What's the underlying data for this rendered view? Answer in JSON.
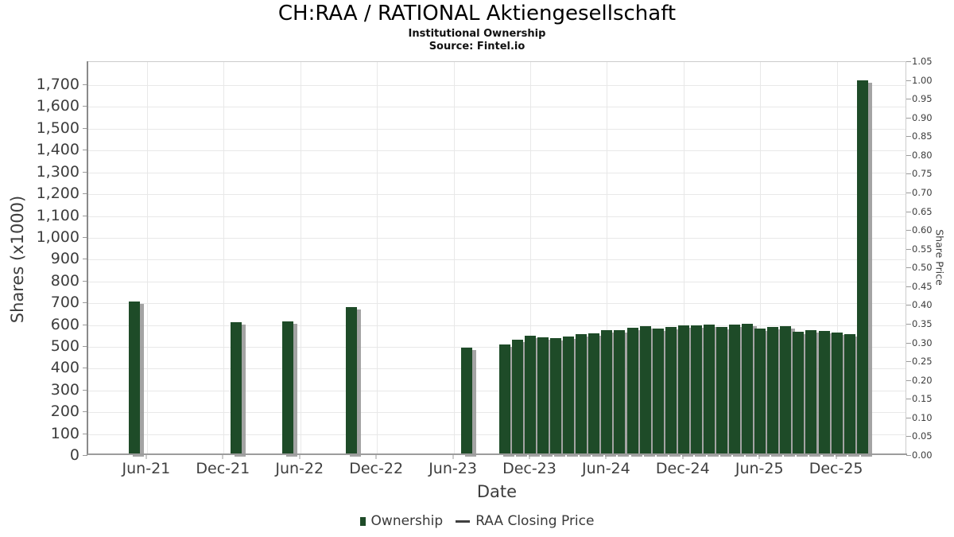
{
  "title": "CH:RAA / RATIONAL Aktiengesellschaft",
  "subtitle": "Institutional Ownership",
  "source": "Source: Fintel.io",
  "legend": {
    "items": [
      {
        "label": "Ownership",
        "symbol": "bar-swatch",
        "color": "#1e4b28"
      },
      {
        "label": "RAA Closing Price",
        "symbol": "line-swatch",
        "color": "#3f3f3f"
      }
    ]
  },
  "colors": {
    "bar": "#1e4b28",
    "bar_shadow": "#949494",
    "gridline": "#e8e8e8",
    "plot_border": "#cccccc",
    "axis_line": "#9c9c9c",
    "tick_label": "#3d3d3d",
    "title_text": "#000000"
  },
  "chart_data": {
    "type": "bar",
    "title": "CH:RAA / RATIONAL Aktiengesellschaft",
    "subtitle": "Institutional Ownership",
    "source": "Source: Fintel.io",
    "xlabel": "Date",
    "ylabel_left": "Shares (x1000)",
    "ylabel_right": "Share Price",
    "grid": "on",
    "legend_position": "bottom-center",
    "x_tick_labels": [
      "Jun-21",
      "Dec-21",
      "Jun-22",
      "Dec-22",
      "Jun-23",
      "Dec-23",
      "Jun-24",
      "Dec-24",
      "Jun-25",
      "Dec-25"
    ],
    "y_left_axis": {
      "min": 0,
      "max_visible_tick": 1700,
      "top_of_plot_value": 1806,
      "tick_step": 100,
      "ticks": [
        0,
        100,
        200,
        300,
        400,
        500,
        600,
        700,
        800,
        900,
        1000,
        1100,
        1200,
        1300,
        1400,
        1500,
        1600,
        1700
      ]
    },
    "y_right_axis": {
      "min": 0.0,
      "max": 1.05,
      "tick_step": 0.05,
      "ticks": [
        0.0,
        0.05,
        0.1,
        0.15,
        0.2,
        0.25,
        0.3,
        0.35,
        0.4,
        0.45,
        0.5,
        0.55,
        0.6,
        0.65,
        0.7,
        0.75,
        0.8,
        0.85,
        0.9,
        0.95,
        1.0,
        1.05
      ]
    },
    "series": [
      {
        "name": "Ownership",
        "type": "bar",
        "units": "shares x1000",
        "points": [
          {
            "date": "May-21",
            "value": 700
          },
          {
            "date": "Jan-22",
            "value": 605
          },
          {
            "date": "May-22",
            "value": 610
          },
          {
            "date": "Oct-22",
            "value": 675
          },
          {
            "date": "Jul-23",
            "value": 490
          },
          {
            "date": "Oct-23",
            "value": 505
          },
          {
            "date": "Nov-23",
            "value": 525
          },
          {
            "date": "Dec-23",
            "value": 543
          },
          {
            "date": "Jan-24",
            "value": 535
          },
          {
            "date": "Feb-24",
            "value": 533
          },
          {
            "date": "Mar-24",
            "value": 540
          },
          {
            "date": "Apr-24",
            "value": 550
          },
          {
            "date": "May-24",
            "value": 556
          },
          {
            "date": "Jun-24",
            "value": 569
          },
          {
            "date": "Jul-24",
            "value": 569
          },
          {
            "date": "Aug-24",
            "value": 579
          },
          {
            "date": "Sep-24",
            "value": 589
          },
          {
            "date": "Oct-24",
            "value": 578
          },
          {
            "date": "Nov-24",
            "value": 584
          },
          {
            "date": "Dec-24",
            "value": 592
          },
          {
            "date": "Jan-25",
            "value": 590
          },
          {
            "date": "Feb-25",
            "value": 593
          },
          {
            "date": "Mar-25",
            "value": 585
          },
          {
            "date": "Apr-25",
            "value": 595
          },
          {
            "date": "May-25",
            "value": 598
          },
          {
            "date": "Jun-25",
            "value": 576
          },
          {
            "date": "Jul-25",
            "value": 584
          },
          {
            "date": "Aug-25",
            "value": 588
          },
          {
            "date": "Sep-25",
            "value": 563
          },
          {
            "date": "Oct-25",
            "value": 571
          },
          {
            "date": "Nov-25",
            "value": 566
          },
          {
            "date": "Dec-25",
            "value": 557
          },
          {
            "date": "Jan-26",
            "value": 550
          },
          {
            "date": "Feb-26",
            "value": 1715
          }
        ]
      },
      {
        "name": "RAA Closing Price",
        "type": "line",
        "points": []
      }
    ]
  }
}
